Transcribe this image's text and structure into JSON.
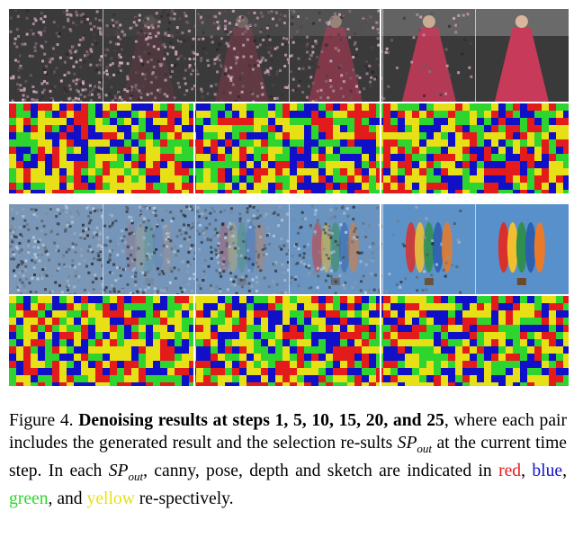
{
  "figure": {
    "rows": [
      {
        "subject": "woman in red gown at Golden Globe Awards",
        "steps": 6,
        "images": [
          "step-1",
          "step-5",
          "step-10",
          "step-15",
          "step-20",
          "step-25"
        ]
      },
      {
        "subject": "hot air balloon in blue sky",
        "steps": 6,
        "images": [
          "step-1",
          "step-5",
          "step-10",
          "step-15",
          "step-20",
          "step-25"
        ]
      }
    ],
    "colors": {
      "canny": "#e41b1b",
      "pose": "#1010c8",
      "depth": "#2fd52f",
      "sketch": "#e8e016"
    }
  },
  "caption": {
    "label": "Figure 4.",
    "bold": "Denoising results at steps 1, 5, 10, 15, 20, and 25",
    "part1": ", where each pair includes the generated result and the selection re-sults",
    "sp_main": "SP",
    "sp_sub": "out",
    "part2": "at the current time step. In each",
    "part3": ", canny, pose, depth and sketch are indicated in",
    "red": "red",
    "comma1": ",",
    "blue": "blue",
    "comma2": ",",
    "green": "green",
    "and": ", and",
    "yellow": "yellow",
    "part4": "re-spectively."
  }
}
